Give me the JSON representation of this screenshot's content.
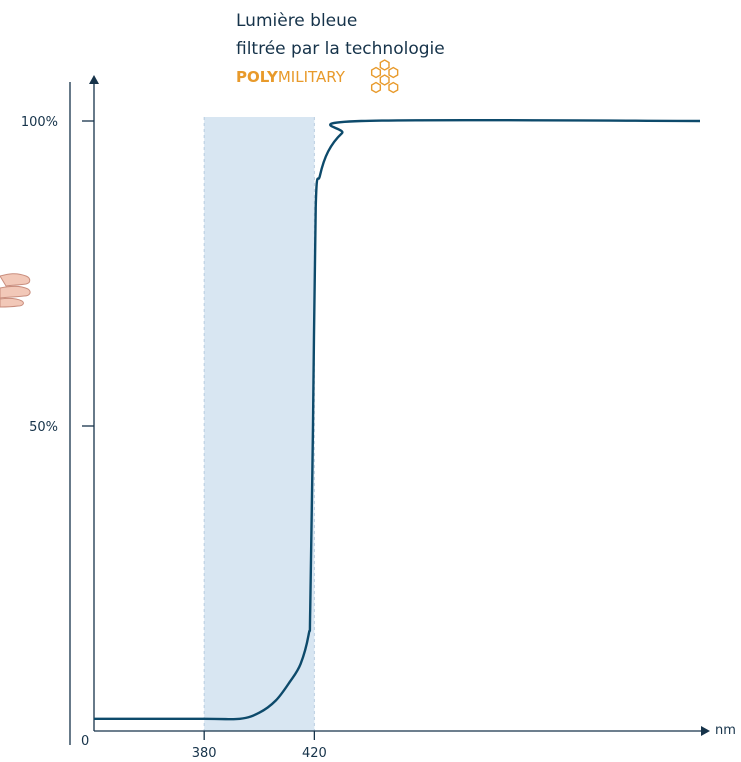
{
  "chart_data": {
    "type": "line",
    "title_lines": [
      "Lumière bleue",
      "filtrée par la technologie"
    ],
    "brand": {
      "bold": "POLY",
      "light": "MILITARY",
      "icon": "honeycomb-icon",
      "color": "#e89a2b"
    },
    "x_unit": "nm",
    "xlim": [
      340,
      560
    ],
    "ylim": [
      0,
      100
    ],
    "x_ticks": [
      {
        "value": 380,
        "label": "380"
      },
      {
        "value": 420,
        "label": "420"
      }
    ],
    "y_ticks": [
      {
        "value": 0,
        "label": "0"
      },
      {
        "value": 50,
        "label": "50%"
      },
      {
        "value": 100,
        "label": "100%"
      }
    ],
    "highlight_band": {
      "from": 380,
      "to": 420,
      "color": "#d8e6f2"
    },
    "series": [
      {
        "color": "#0d4a6b",
        "points": [
          [
            340,
            2
          ],
          [
            380,
            2
          ],
          [
            393,
            2
          ],
          [
            400,
            3
          ],
          [
            406,
            5
          ],
          [
            411,
            8
          ],
          [
            415,
            11
          ],
          [
            418,
            16
          ],
          [
            418.5,
            20
          ],
          [
            419.5,
            50
          ],
          [
            420.5,
            86
          ],
          [
            422,
            91
          ],
          [
            425,
            95
          ],
          [
            430,
            98
          ],
          [
            437,
            100
          ],
          [
            560,
            100
          ]
        ]
      }
    ],
    "axis_color": "#16334a",
    "grid": false
  },
  "decoration": {
    "left_edge": "hand-icon"
  }
}
